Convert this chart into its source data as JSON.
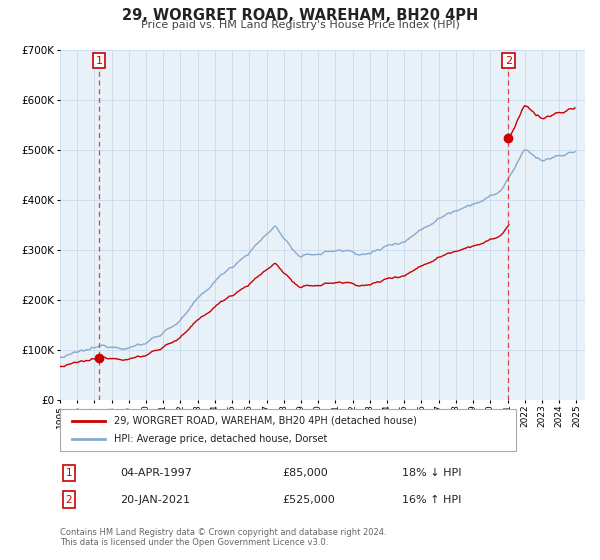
{
  "title": "29, WORGRET ROAD, WAREHAM, BH20 4PH",
  "subtitle": "Price paid vs. HM Land Registry's House Price Index (HPI)",
  "legend_label_red": "29, WORGRET ROAD, WAREHAM, BH20 4PH (detached house)",
  "legend_label_blue": "HPI: Average price, detached house, Dorset",
  "point1_label": "1",
  "point1_date": "04-APR-1997",
  "point1_price": "£85,000",
  "point1_hpi": "18% ↓ HPI",
  "point1_year": 1997.27,
  "point1_value": 85000,
  "point2_label": "2",
  "point2_date": "20-JAN-2021",
  "point2_price": "£525,000",
  "point2_hpi": "16% ↑ HPI",
  "point2_year": 2021.05,
  "point2_value": 525000,
  "ylim": [
    0,
    700000
  ],
  "xlim_start": 1995,
  "xlim_end": 2025.5,
  "grid_color": "#ccddee",
  "plot_bg_color": "#e8f0f8",
  "red_line_color": "#cc0000",
  "blue_line_color": "#88aacc",
  "vline_color": "#dd4444",
  "background_color": "#ffffff",
  "footnote": "Contains HM Land Registry data © Crown copyright and database right 2024.\nThis data is licensed under the Open Government Licence v3.0."
}
